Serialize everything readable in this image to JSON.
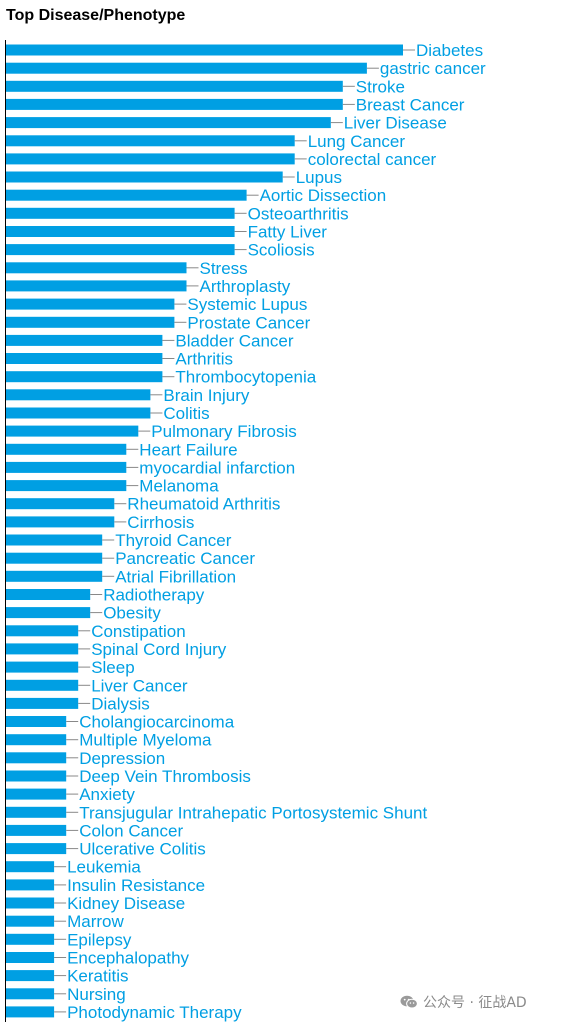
{
  "title": "Top Disease/Phenotype",
  "watermark": "公众号 · 征战AD",
  "colors": {
    "bar": "#009fe3",
    "label": "#009fe3",
    "axis": "#000000",
    "leader": "#888888"
  },
  "chart_data": {
    "type": "bar",
    "orientation": "horizontal",
    "xlim": [
      0,
      33
    ],
    "categories": [
      "Diabetes",
      "gastric cancer",
      "Stroke",
      "Breast Cancer",
      "Liver Disease",
      "Lung Cancer",
      "colorectal cancer",
      "Lupus",
      "Aortic Dissection",
      "Osteoarthritis",
      "Fatty Liver",
      "Scoliosis",
      "Stress",
      "Arthroplasty",
      "Systemic Lupus",
      "Prostate Cancer",
      "Bladder Cancer",
      "Arthritis",
      "Thrombocytopenia",
      "Brain Injury",
      "Colitis",
      "Pulmonary Fibrosis",
      "Heart Failure",
      "myocardial infarction",
      "Melanoma",
      "Rheumatoid Arthritis",
      "Cirrhosis",
      "Thyroid Cancer",
      "Pancreatic Cancer",
      "Atrial Fibrillation",
      "Radiotherapy",
      "Obesity",
      "Constipation",
      "Spinal Cord Injury",
      "Sleep",
      "Liver Cancer",
      "Dialysis",
      "Cholangiocarcinoma",
      "Multiple Myeloma",
      "Depression",
      "Deep Vein Thrombosis",
      "Anxiety",
      "Transjugular Intrahepatic Portosystemic Shunt",
      "Colon Cancer",
      "Ulcerative Colitis",
      "Leukemia",
      "Insulin Resistance",
      "Kidney Disease",
      "Marrow",
      "Epilepsy",
      "Encephalopathy",
      "Keratitis",
      "Nursing",
      "Photodynamic Therapy"
    ],
    "values": [
      33,
      30,
      28,
      28,
      27,
      24,
      24,
      23,
      20,
      19,
      19,
      19,
      15,
      15,
      14,
      14,
      13,
      13,
      13,
      12,
      12,
      11,
      10,
      10,
      10,
      9,
      9,
      8,
      8,
      8,
      7,
      7,
      6,
      6,
      6,
      6,
      6,
      5,
      5,
      5,
      5,
      5,
      5,
      5,
      5,
      4,
      4,
      4,
      4,
      4,
      4,
      4,
      4,
      4
    ]
  }
}
